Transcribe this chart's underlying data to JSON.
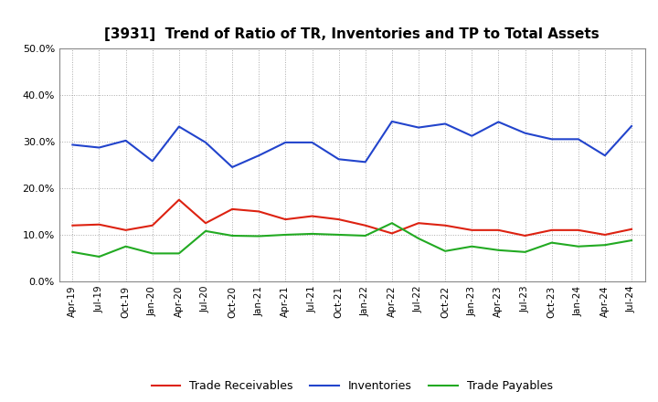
{
  "title": "[3931]  Trend of Ratio of TR, Inventories and TP to Total Assets",
  "x_labels": [
    "Apr-19",
    "Jul-19",
    "Oct-19",
    "Jan-20",
    "Apr-20",
    "Jul-20",
    "Oct-20",
    "Jan-21",
    "Apr-21",
    "Jul-21",
    "Oct-21",
    "Jan-22",
    "Apr-22",
    "Jul-22",
    "Oct-22",
    "Jan-23",
    "Apr-23",
    "Jul-23",
    "Oct-23",
    "Jan-24",
    "Apr-24",
    "Jul-24"
  ],
  "trade_receivables": [
    0.12,
    0.122,
    0.11,
    0.12,
    0.175,
    0.125,
    0.155,
    0.15,
    0.133,
    0.14,
    0.133,
    0.12,
    0.103,
    0.125,
    0.12,
    0.11,
    0.11,
    0.098,
    0.11,
    0.11,
    0.1,
    0.112
  ],
  "inventories": [
    0.293,
    0.287,
    0.302,
    0.258,
    0.332,
    0.298,
    0.245,
    0.27,
    0.298,
    0.298,
    0.262,
    0.256,
    0.343,
    0.33,
    0.338,
    0.312,
    0.342,
    0.318,
    0.305,
    0.305,
    0.27,
    0.333
  ],
  "trade_payables": [
    0.063,
    0.053,
    0.075,
    0.06,
    0.06,
    0.108,
    0.098,
    0.097,
    0.1,
    0.102,
    0.1,
    0.098,
    0.125,
    0.092,
    0.065,
    0.075,
    0.067,
    0.063,
    0.083,
    0.075,
    0.078,
    0.088
  ],
  "tr_color": "#dd2211",
  "inv_color": "#2244cc",
  "tp_color": "#22aa22",
  "ylim": [
    0.0,
    0.5
  ],
  "yticks": [
    0.0,
    0.1,
    0.2,
    0.3,
    0.4,
    0.5
  ],
  "legend_labels": [
    "Trade Receivables",
    "Inventories",
    "Trade Payables"
  ],
  "background_color": "#ffffff",
  "grid_color": "#aaaaaa"
}
